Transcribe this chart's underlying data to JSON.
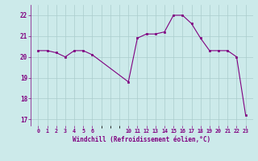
{
  "x": [
    0,
    1,
    2,
    3,
    4,
    5,
    6,
    10,
    11,
    12,
    13,
    14,
    15,
    16,
    17,
    18,
    19,
    20,
    21,
    22,
    23
  ],
  "y": [
    20.3,
    20.3,
    20.2,
    20.0,
    20.3,
    20.3,
    20.1,
    18.8,
    20.9,
    21.1,
    21.1,
    21.2,
    22.0,
    22.0,
    21.6,
    20.9,
    20.3,
    20.3,
    20.3,
    20.0,
    17.2
  ],
  "line_color": "#800080",
  "marker_color": "#800080",
  "bg_color": "#cceaea",
  "grid_color": "#aacccc",
  "xlabel": "Windchill (Refroidissement éolien,°C)",
  "xlabel_color": "#800080",
  "tick_color": "#800080",
  "ylim": [
    16.7,
    22.5
  ],
  "yticks": [
    17,
    18,
    19,
    20,
    21,
    22
  ],
  "xticks": [
    0,
    1,
    2,
    3,
    4,
    5,
    6,
    10,
    11,
    12,
    13,
    14,
    15,
    16,
    17,
    18,
    19,
    20,
    21,
    22,
    23
  ],
  "xtick_labels": [
    "0",
    "1",
    "2",
    "3",
    "4",
    "5",
    "6",
    "10",
    "11",
    "12",
    "13",
    "14",
    "15",
    "16",
    "17",
    "18",
    "19",
    "20",
    "21",
    "22",
    "23"
  ]
}
